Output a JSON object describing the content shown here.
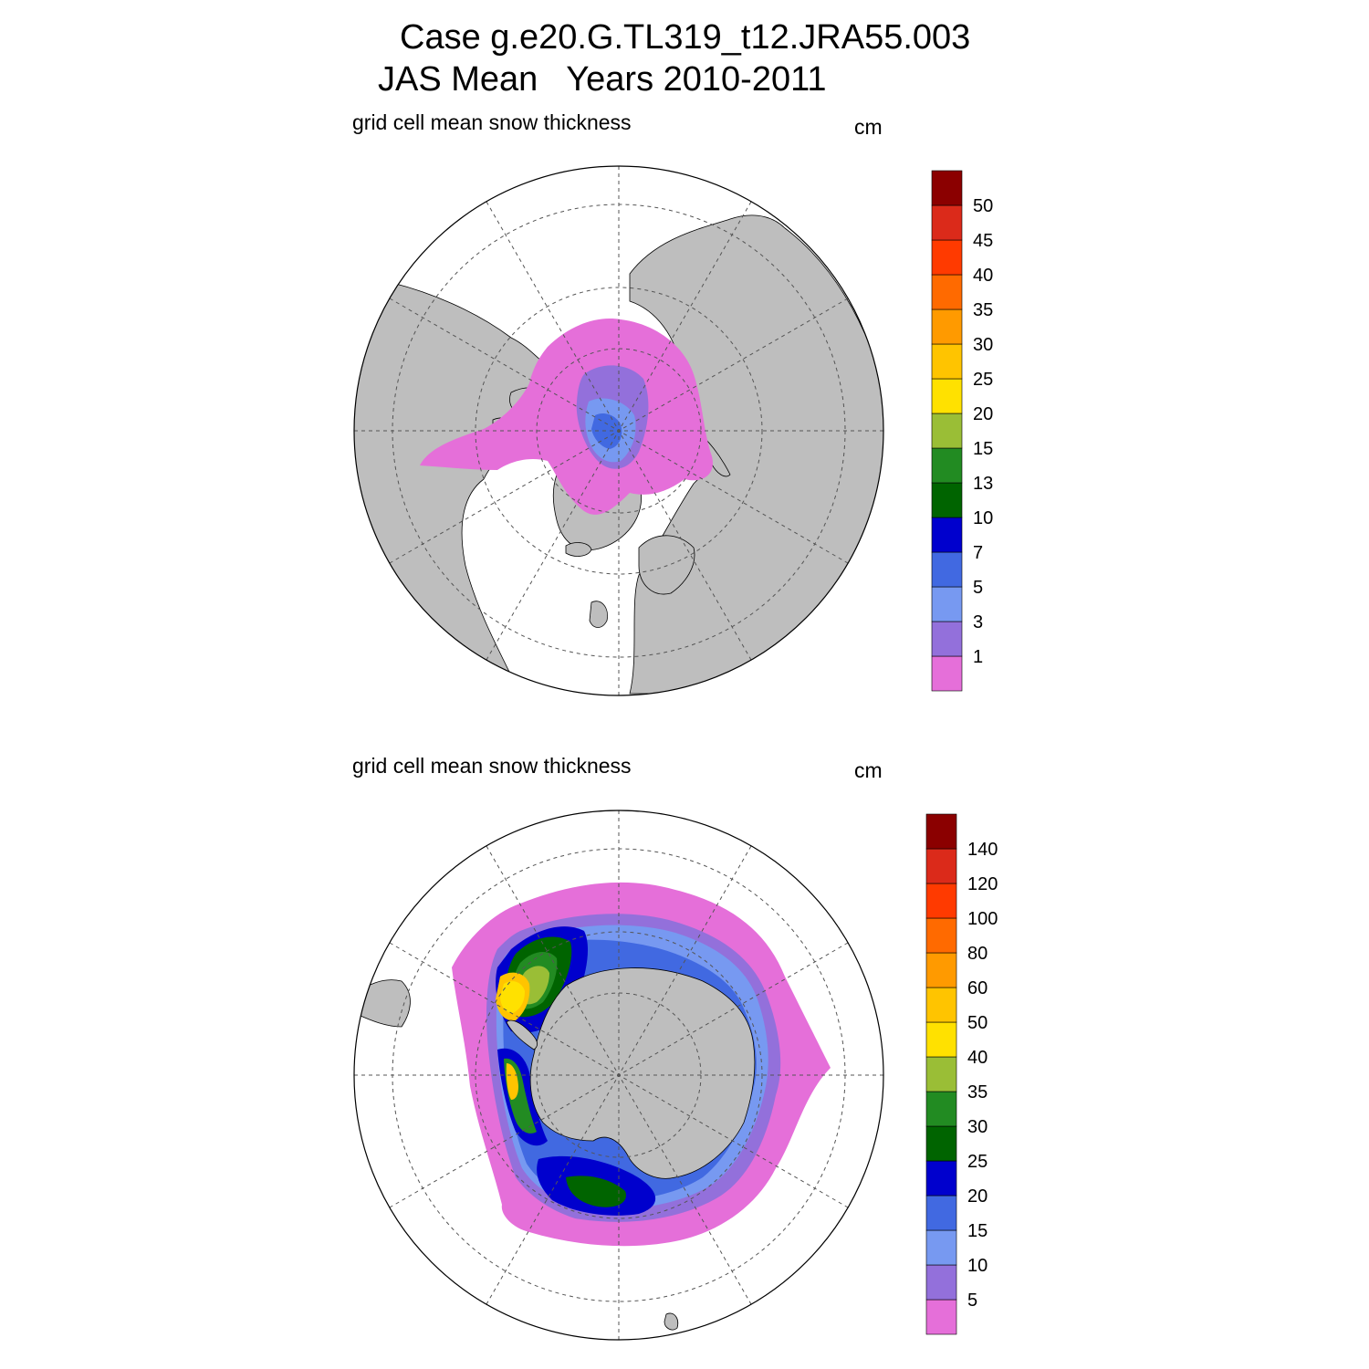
{
  "title": {
    "line1": "Case g.e20.G.TL319_t12.JRA55.003",
    "line2": "JAS Mean   Years 2010-2011"
  },
  "panels": [
    {
      "hemisphere": "north",
      "variable_label": "grid cell mean snow thickness",
      "units": "cm",
      "colorbar": {
        "labels": [
          "1",
          "3",
          "5",
          "7",
          "10",
          "13",
          "15",
          "20",
          "25",
          "30",
          "35",
          "40",
          "45",
          "50"
        ],
        "colors": [
          "#e56fd9",
          "#9370db",
          "#7799f1",
          "#4169e1",
          "#0000cd",
          "#006400",
          "#228b22",
          "#9abe36",
          "#ffe100",
          "#ffc400",
          "#ff9a00",
          "#ff6a00",
          "#ff3a00",
          "#db2a1a",
          "#8b0000"
        ]
      }
    },
    {
      "hemisphere": "south",
      "variable_label": "grid cell mean snow thickness",
      "units": "cm",
      "colorbar": {
        "labels": [
          "5",
          "10",
          "15",
          "20",
          "25",
          "30",
          "35",
          "40",
          "50",
          "60",
          "80",
          "100",
          "120",
          "140"
        ],
        "colors": [
          "#e56fd9",
          "#9370db",
          "#7799f1",
          "#4169e1",
          "#0000cd",
          "#006400",
          "#228b22",
          "#9abe36",
          "#ffe100",
          "#ffc400",
          "#ff9a00",
          "#ff6a00",
          "#ff3a00",
          "#db2a1a",
          "#8b0000"
        ]
      }
    }
  ],
  "map_colors": {
    "land": "#bebebe",
    "ocean": "#ffffff",
    "grid": "#555555"
  }
}
